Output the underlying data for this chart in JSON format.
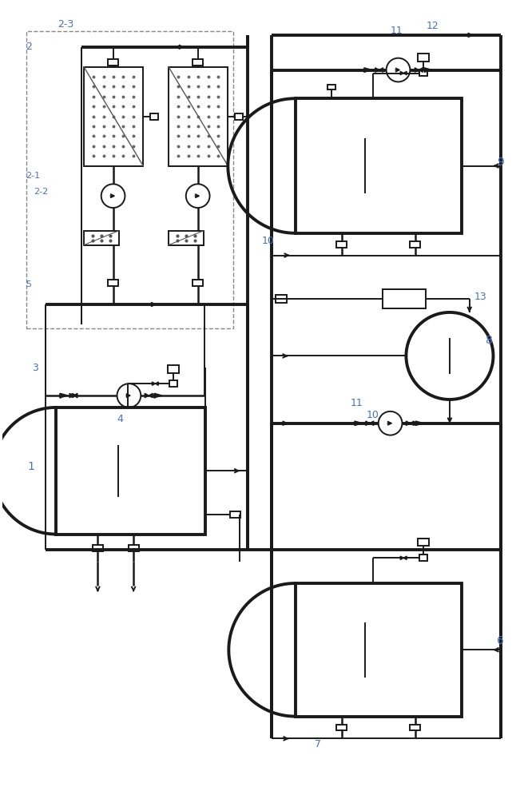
{
  "bg_color": "#ffffff",
  "line_color": "#1a1a1a",
  "label_color": "#4472c4",
  "lw": 1.4,
  "lw_thick": 2.8,
  "lw_med": 1.8,
  "fig_width": 6.51,
  "fig_height": 10.0
}
